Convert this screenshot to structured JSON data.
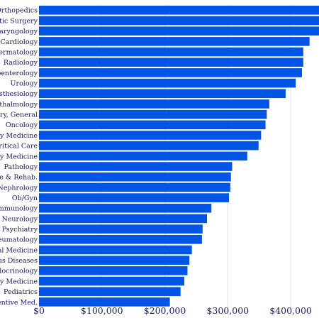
{
  "chart_data": {
    "type": "bar",
    "orientation": "horizontal",
    "title": "",
    "xlabel": "",
    "ylabel": "",
    "xlim": [
      0,
      445000
    ],
    "grid": true,
    "bar_color": "#0055e6",
    "categories": [
      "Orthopedics",
      "lastic Surgery",
      "tolaryngology",
      "Cardiology",
      "Dermatology",
      "Radiology",
      "troenterology",
      "Urology",
      "nesthesiology",
      "phthalmology",
      "gery, General",
      "Oncology",
      "ncy Medicine",
      "Critical Care",
      "nary Medicine",
      "Pathology",
      "ine & Rehab.",
      "Nephrology",
      "Ob/Gyn",
      "& Immunology",
      "Neurology",
      "Psychiatry",
      "theumatology",
      "rnal Medicine",
      "ous Diseases",
      "Endocrinology",
      "mily Medicine",
      "Pediatrics",
      "eventive Med."
    ],
    "values": [
      450000,
      450000,
      450000,
      430000,
      420000,
      420000,
      418000,
      408000,
      392000,
      366000,
      362000,
      360000,
      353000,
      349000,
      331000,
      307000,
      305000,
      304000,
      302000,
      274000,
      267000,
      260000,
      259000,
      243000,
      239000,
      236000,
      231000,
      225000,
      208000
    ],
    "x_ticks": [
      {
        "value": 0,
        "label": "$0"
      },
      {
        "value": 100000,
        "label": "$100,000"
      },
      {
        "value": 200000,
        "label": "$200,000"
      },
      {
        "value": 300000,
        "label": "$300,000"
      },
      {
        "value": 400000,
        "label": "$400,000"
      }
    ]
  }
}
